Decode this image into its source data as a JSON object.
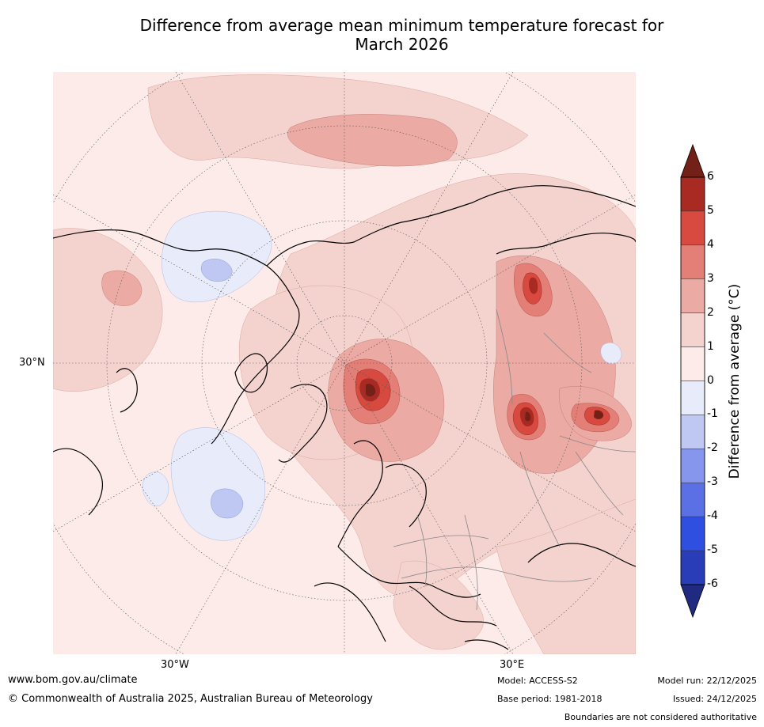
{
  "title_line1": "Difference from average mean minimum temperature forecast for",
  "title_line2": "March 2026",
  "map": {
    "projection": "polar stereographic, North Pole",
    "lat_label": "30°N",
    "lon_labels": [
      "30°W",
      "30°E"
    ],
    "colors": {
      "ocean_base": "#fcebe9",
      "land_warm": "#f4d3cf",
      "warm_1": "#f4d3cf",
      "warm_2": "#ebaaa3",
      "warm_3": "#e37f76",
      "warm_4": "#d84a3f",
      "warm_5": "#a82a22",
      "warm_6": "#722018",
      "cool_1": "#e8ecfa",
      "cool_2": "#bfc8f2"
    }
  },
  "colorbar": {
    "label": "Difference from average ($^\\circ$C)",
    "label_display": "Difference from average (°C)",
    "ticks": [
      "6",
      "5",
      "4",
      "3",
      "2",
      "1",
      "0",
      "-1",
      "-2",
      "-3",
      "-4",
      "-5",
      "-6"
    ],
    "colors_top_to_bottom": [
      "#a82a22",
      "#d84a3f",
      "#e37f76",
      "#ebaaa3",
      "#f4d3cf",
      "#fcebe9",
      "#e8ecfa",
      "#bfc8f2",
      "#8596ec",
      "#5b70e4",
      "#2f4fe0",
      "#2a3db8"
    ],
    "over_color": "#722018",
    "under_color": "#1f2a80"
  },
  "footer": {
    "url": "www.bom.gov.au/climate",
    "copyright": "© Commonwealth of Australia 2025, Australian Bureau of Meteorology",
    "model": "Model: ACCESS-S2",
    "base_period": "Base period: 1981-2018",
    "model_run": "Model run: 22/12/2025",
    "issued": "Issued: 24/12/2025",
    "disclaimer": "Boundaries are not considered authoritative"
  }
}
